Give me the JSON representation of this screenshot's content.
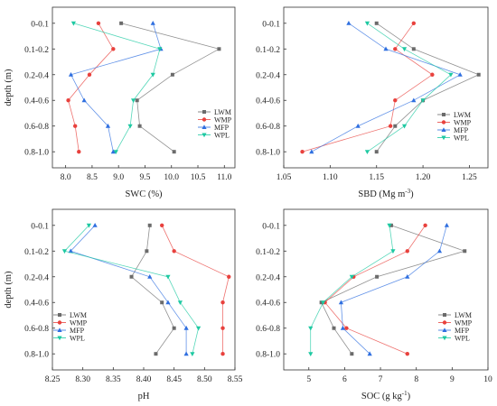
{
  "chart_data": [
    {
      "type": "line",
      "panel": "SWC",
      "ylabel": "depth (m)",
      "xlabel": {
        "main": "SWC (%)",
        "sup": ""
      },
      "xlim": [
        7.75,
        11.2
      ],
      "xticks": [
        "8.0",
        "8.5",
        "9.0",
        "9.5",
        "10.0",
        "10.5",
        "11.0"
      ],
      "xtick_values": [
        8.0,
        8.5,
        9.0,
        9.5,
        10.0,
        10.5,
        11.0
      ],
      "categories": [
        "0-0.1",
        "0.1-0.2",
        "0.2-0.4",
        "0.4-0.6",
        "0.6-0.8",
        "0.8-1.0"
      ],
      "legend_position": "right-middle",
      "series": [
        {
          "name": "LWM",
          "values": [
            9.05,
            10.9,
            10.02,
            9.35,
            9.4,
            10.05
          ]
        },
        {
          "name": "WMP",
          "values": [
            8.62,
            8.9,
            8.45,
            8.05,
            8.18,
            8.25
          ]
        },
        {
          "name": "MFP",
          "values": [
            9.65,
            9.8,
            8.1,
            8.35,
            8.8,
            8.9
          ]
        },
        {
          "name": "WPL",
          "values": [
            8.15,
            9.78,
            9.65,
            9.28,
            9.22,
            8.95
          ]
        }
      ]
    },
    {
      "type": "line",
      "panel": "SBD",
      "ylabel": "",
      "xlabel": {
        "main": "SBD (Mg m",
        "sup": "-3",
        "end": ")"
      },
      "xlim": [
        1.05,
        1.27
      ],
      "xticks": [
        "1.05",
        "1.10",
        "1.15",
        "1.20",
        "1.25"
      ],
      "xtick_values": [
        1.05,
        1.1,
        1.15,
        1.2,
        1.25
      ],
      "categories": [
        "0-0.1",
        "0.1-0.2",
        "0.2-0.4",
        "0.4-0.6",
        "0.6-0.8",
        "0.8-1.0"
      ],
      "legend_position": "right-middle",
      "series": [
        {
          "name": "LWM",
          "values": [
            1.15,
            1.19,
            1.26,
            1.2,
            1.17,
            1.15
          ]
        },
        {
          "name": "WMP",
          "values": [
            1.19,
            1.17,
            1.21,
            1.17,
            1.165,
            1.07
          ]
        },
        {
          "name": "MFP",
          "values": [
            1.12,
            1.16,
            1.24,
            1.19,
            1.13,
            1.08
          ]
        },
        {
          "name": "WPL",
          "values": [
            1.14,
            1.18,
            1.23,
            1.2,
            1.18,
            1.14
          ]
        }
      ]
    },
    {
      "type": "line",
      "panel": "pH",
      "ylabel": "depth (m)",
      "xlabel": {
        "main": "pH",
        "sup": ""
      },
      "xlim": [
        8.25,
        8.55
      ],
      "xticks": [
        "8.25",
        "8.30",
        "8.35",
        "8.40",
        "8.45",
        "8.50",
        "8.55"
      ],
      "xtick_values": [
        8.25,
        8.3,
        8.35,
        8.4,
        8.45,
        8.5,
        8.55
      ],
      "categories": [
        "0-0.1",
        "0.1-0.2",
        "0.2-0.4",
        "0.4-0.6",
        "0.6-0.8",
        "0.8-1.0"
      ],
      "legend_position": "left-middle",
      "series": [
        {
          "name": "LWM",
          "values": [
            8.41,
            8.405,
            8.38,
            8.43,
            8.45,
            8.42
          ]
        },
        {
          "name": "WMP",
          "values": [
            8.43,
            8.45,
            8.54,
            8.53,
            8.53,
            8.53
          ]
        },
        {
          "name": "MFP",
          "values": [
            8.32,
            8.28,
            8.41,
            8.44,
            8.47,
            8.47
          ]
        },
        {
          "name": "WPL",
          "values": [
            8.31,
            8.27,
            8.44,
            8.46,
            8.49,
            8.48
          ]
        }
      ]
    },
    {
      "type": "line",
      "panel": "SOC",
      "ylabel": "",
      "xlabel": {
        "main": "SOC (g kg",
        "sup": "-1",
        "end": ")"
      },
      "xlim": [
        4.3,
        10.0
      ],
      "xticks": [
        "5",
        "6",
        "7",
        "8",
        "9",
        "10"
      ],
      "xtick_values": [
        5,
        6,
        7,
        8,
        9,
        10
      ],
      "categories": [
        "0-0.1",
        "0.1-0.2",
        "0.2-0.4",
        "0.4-0.6",
        "0.6-0.8",
        "0.8-1.0"
      ],
      "legend_position": "right-middle",
      "series": [
        {
          "name": "LWM",
          "values": [
            7.3,
            9.35,
            6.9,
            5.35,
            5.7,
            6.2
          ]
        },
        {
          "name": "WMP",
          "values": [
            8.25,
            7.75,
            6.25,
            5.45,
            6.05,
            7.75
          ]
        },
        {
          "name": "MFP",
          "values": [
            8.85,
            8.65,
            7.75,
            5.9,
            5.95,
            6.7
          ]
        },
        {
          "name": "WPL",
          "values": [
            7.25,
            7.35,
            6.2,
            5.4,
            5.05,
            5.05
          ]
        }
      ]
    }
  ],
  "series_styles": [
    {
      "name": "LWM",
      "color": "#6b6b6b",
      "marker": "square"
    },
    {
      "name": "WMP",
      "color": "#e8413d",
      "marker": "circle"
    },
    {
      "name": "MFP",
      "color": "#2f6fe0",
      "marker": "triangle-up"
    },
    {
      "name": "WPL",
      "color": "#1ec9a2",
      "marker": "triangle-down"
    }
  ]
}
